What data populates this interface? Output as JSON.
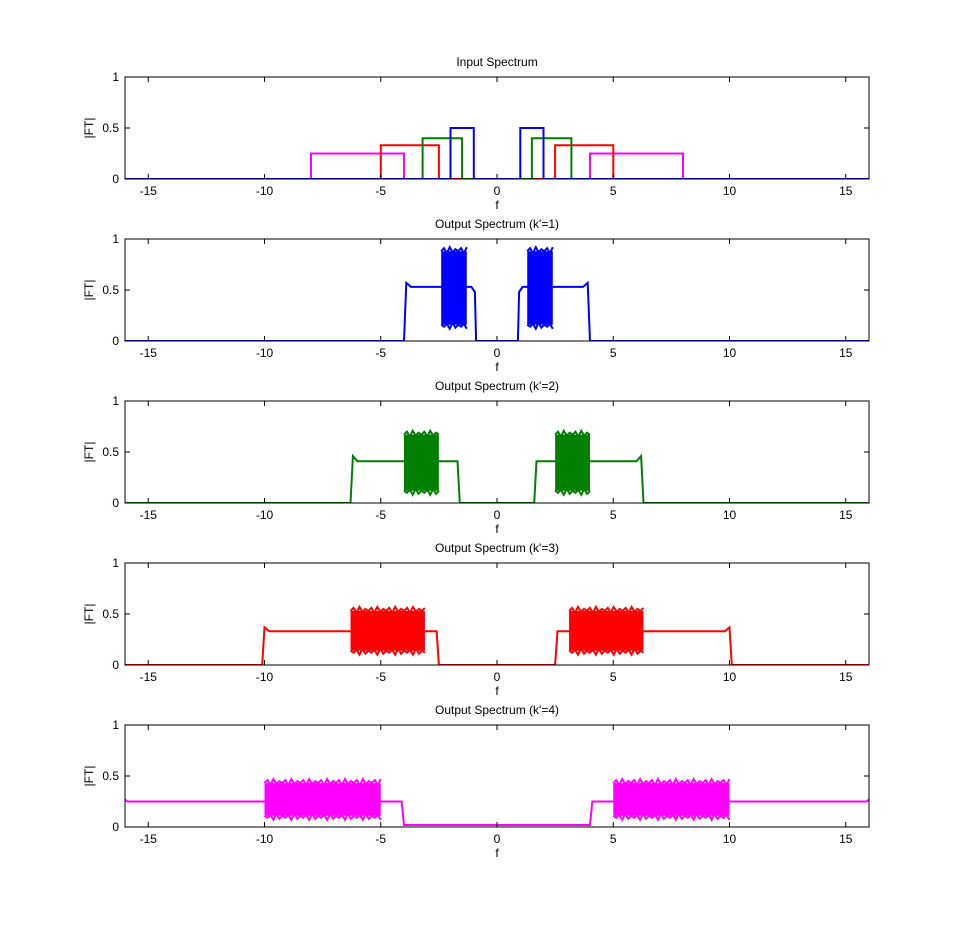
{
  "colors": {
    "k1": "#0000ff",
    "k2": "#007f00",
    "k3": "#ff0000",
    "k4": "#ff00ff"
  },
  "chart_data": [
    {
      "type": "line",
      "title": "Input Spectrum",
      "xlabel": "f",
      "ylabel": "|FT|",
      "xlim": [
        -16,
        16
      ],
      "ylim": [
        0,
        1
      ],
      "xticks": [
        -15,
        -10,
        -5,
        0,
        5,
        10,
        15
      ],
      "yticks": [
        0,
        0.5,
        1
      ],
      "xticklabels": [
        "-15",
        "-10",
        "-5",
        "0",
        "5",
        "10",
        "15"
      ],
      "yticklabels": [
        "0",
        "0.5",
        "1"
      ],
      "series": [
        {
          "color": "#ff00ff",
          "points": [
            [
              -16,
              0
            ],
            [
              -8,
              0
            ],
            [
              -8,
              0.25
            ],
            [
              -4,
              0.25
            ],
            [
              -4,
              0
            ],
            [
              4,
              0
            ],
            [
              4,
              0.25
            ],
            [
              8,
              0.25
            ],
            [
              8,
              0
            ],
            [
              16,
              0
            ]
          ]
        },
        {
          "color": "#ff0000",
          "points": [
            [
              -16,
              0
            ],
            [
              -5,
              0
            ],
            [
              -5,
              0.33
            ],
            [
              -2.5,
              0.33
            ],
            [
              -2.5,
              0
            ],
            [
              2.5,
              0
            ],
            [
              2.5,
              0.33
            ],
            [
              5,
              0.33
            ],
            [
              5,
              0
            ],
            [
              16,
              0
            ]
          ]
        },
        {
          "color": "#007f00",
          "points": [
            [
              -16,
              0
            ],
            [
              -3.2,
              0
            ],
            [
              -3.2,
              0.4
            ],
            [
              -1.5,
              0.4
            ],
            [
              -1.5,
              0
            ],
            [
              1.5,
              0
            ],
            [
              1.5,
              0.4
            ],
            [
              3.2,
              0.4
            ],
            [
              3.2,
              0
            ],
            [
              16,
              0
            ]
          ]
        },
        {
          "color": "#0000ff",
          "points": [
            [
              -16,
              0
            ],
            [
              -2,
              0
            ],
            [
              -2,
              0.5
            ],
            [
              -1,
              0.5
            ],
            [
              -1,
              0
            ],
            [
              1,
              0
            ],
            [
              1,
              0.5
            ],
            [
              2,
              0.5
            ],
            [
              2,
              0
            ],
            [
              16,
              0
            ]
          ]
        }
      ]
    },
    {
      "type": "line",
      "title": "Output Spectrum (k'=1)",
      "xlabel": "f",
      "ylabel": "|FT|",
      "xlim": [
        -16,
        16
      ],
      "ylim": [
        0,
        1
      ],
      "xticks": [
        -15,
        -10,
        -5,
        0,
        5,
        10,
        15
      ],
      "yticks": [
        0,
        0.5,
        1
      ],
      "xticklabels": [
        "-15",
        "-10",
        "-5",
        "0",
        "5",
        "10",
        "15"
      ],
      "yticklabels": [
        "0",
        "0.5",
        "1"
      ],
      "series": [
        {
          "color": "#0000ff",
          "points": [
            [
              -16,
              0
            ],
            [
              -4,
              0
            ],
            [
              -3.9,
              0.57
            ],
            [
              -3.7,
              0.53
            ],
            [
              -2.5,
              0.53
            ],
            [
              -1.1,
              0.53
            ],
            [
              -0.95,
              0.48
            ],
            [
              -0.9,
              0
            ],
            [
              0.9,
              0
            ],
            [
              0.95,
              0.48
            ],
            [
              1.1,
              0.53
            ],
            [
              3.7,
              0.53
            ],
            [
              3.9,
              0.57
            ],
            [
              4,
              0
            ],
            [
              16,
              0
            ]
          ]
        }
      ],
      "oscillation_bands": [
        {
          "x": [
            -2.4,
            -1.3
          ],
          "y": [
            0.16,
            0.88
          ]
        },
        {
          "x": [
            1.3,
            2.4
          ],
          "y": [
            0.16,
            0.88
          ]
        }
      ]
    },
    {
      "type": "line",
      "title": "Output Spectrum (k'=2)",
      "xlabel": "f",
      "ylabel": "|FT|",
      "xlim": [
        -16,
        16
      ],
      "ylim": [
        0,
        1
      ],
      "xticks": [
        -15,
        -10,
        -5,
        0,
        5,
        10,
        15
      ],
      "yticks": [
        0,
        0.5,
        1
      ],
      "xticklabels": [
        "-15",
        "-10",
        "-5",
        "0",
        "5",
        "10",
        "15"
      ],
      "yticklabels": [
        "0",
        "0.5",
        "1"
      ],
      "series": [
        {
          "color": "#007f00",
          "points": [
            [
              -16,
              0
            ],
            [
              -6.3,
              0
            ],
            [
              -6.2,
              0.46
            ],
            [
              -6.0,
              0.41
            ],
            [
              -2.8,
              0.41
            ],
            [
              -1.7,
              0.41
            ],
            [
              -1.6,
              0
            ],
            [
              1.6,
              0
            ],
            [
              1.7,
              0.41
            ],
            [
              6.0,
              0.41
            ],
            [
              6.2,
              0.46
            ],
            [
              6.3,
              0
            ],
            [
              16,
              0
            ]
          ]
        }
      ],
      "oscillation_bands": [
        {
          "x": [
            -4.0,
            -2.5
          ],
          "y": [
            0.12,
            0.67
          ]
        },
        {
          "x": [
            2.5,
            4.0
          ],
          "y": [
            0.12,
            0.67
          ]
        }
      ]
    },
    {
      "type": "line",
      "title": "Output Spectrum (k'=3)",
      "xlabel": "f",
      "ylabel": "|FT|",
      "xlim": [
        -16,
        16
      ],
      "ylim": [
        0,
        1
      ],
      "xticks": [
        -15,
        -10,
        -5,
        0,
        5,
        10,
        15
      ],
      "yticks": [
        0,
        0.5,
        1
      ],
      "xticklabels": [
        "-15",
        "-10",
        "-5",
        "0",
        "5",
        "10",
        "15"
      ],
      "yticklabels": [
        "0",
        "0.5",
        "1"
      ],
      "series": [
        {
          "color": "#ff0000",
          "points": [
            [
              -16,
              0
            ],
            [
              -10.1,
              0
            ],
            [
              -10.0,
              0.37
            ],
            [
              -9.8,
              0.33
            ],
            [
              -6.2,
              0.33
            ],
            [
              -3.0,
              0.33
            ],
            [
              -2.6,
              0.33
            ],
            [
              -2.5,
              0
            ],
            [
              2.5,
              0
            ],
            [
              2.6,
              0.33
            ],
            [
              9.8,
              0.33
            ],
            [
              10.0,
              0.37
            ],
            [
              10.1,
              0
            ],
            [
              16,
              0
            ]
          ]
        }
      ],
      "oscillation_bands": [
        {
          "x": [
            -6.3,
            -3.1
          ],
          "y": [
            0.14,
            0.53
          ]
        },
        {
          "x": [
            3.1,
            6.3
          ],
          "y": [
            0.14,
            0.53
          ]
        }
      ]
    },
    {
      "type": "line",
      "title": "Output Spectrum (k'=4)",
      "xlabel": "f",
      "ylabel": "|FT|",
      "xlim": [
        -16,
        16
      ],
      "ylim": [
        0,
        1
      ],
      "xticks": [
        -15,
        -10,
        -5,
        0,
        5,
        10,
        15
      ],
      "yticks": [
        0,
        0.5,
        1
      ],
      "xticklabels": [
        "-15",
        "-10",
        "-5",
        "0",
        "5",
        "10",
        "15"
      ],
      "yticklabels": [
        "0",
        "0.5",
        "1"
      ],
      "series": [
        {
          "color": "#ff00ff",
          "points": [
            [
              -16,
              0.27
            ],
            [
              -15.9,
              0.25
            ],
            [
              -10.2,
              0.25
            ],
            [
              -10,
              0.25
            ],
            [
              -5,
              0.25
            ],
            [
              -4.1,
              0.25
            ],
            [
              -4.0,
              0.02
            ],
            [
              4.0,
              0.02
            ],
            [
              4.1,
              0.25
            ],
            [
              10.2,
              0.25
            ],
            [
              15.9,
              0.25
            ],
            [
              16,
              0.27
            ]
          ]
        }
      ],
      "oscillation_bands": [
        {
          "x": [
            -10.0,
            -5.0
          ],
          "y": [
            0.11,
            0.43
          ]
        },
        {
          "x": [
            5.0,
            10.0
          ],
          "y": [
            0.11,
            0.43
          ]
        }
      ]
    }
  ]
}
